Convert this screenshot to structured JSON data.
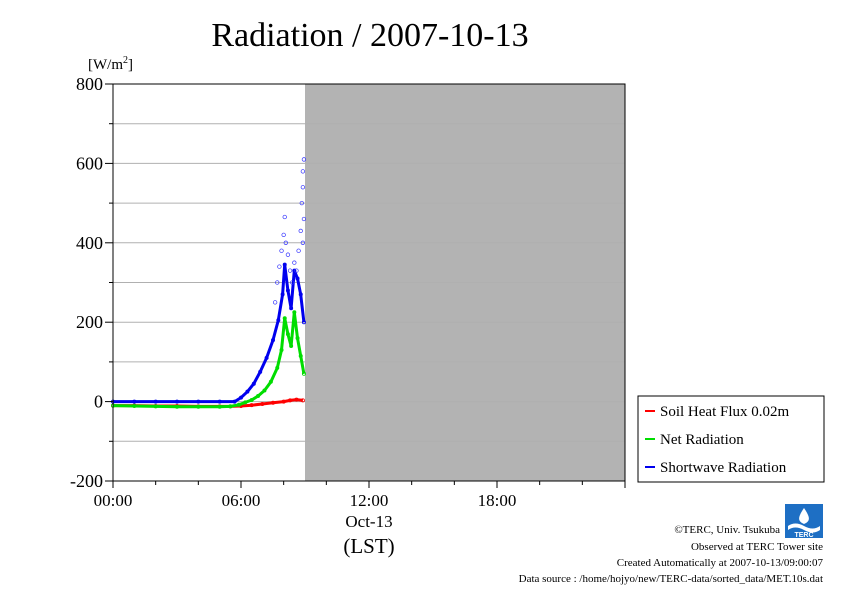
{
  "chart_data": {
    "type": "line",
    "title": "Radiation / 2007-10-13",
    "ylabel": "[W/m",
    "ylabel_sup": "2",
    "ylabel_close": "]",
    "ylim": [
      -200,
      800
    ],
    "yticks": [
      -200,
      0,
      200,
      400,
      600,
      800
    ],
    "y_tick_labels": [
      "-200",
      "0",
      "200",
      "400",
      "600",
      "800"
    ],
    "xlim": [
      0,
      24
    ],
    "xticks": [
      0,
      6,
      12,
      18
    ],
    "x_tick_labels": [
      "00:00",
      "06:00",
      "12:00",
      "18:00"
    ],
    "x_date_label": "Oct-13",
    "xlabel": "(LST)",
    "grid": true,
    "no_data_region": [
      9.0,
      24
    ],
    "legend_position": "lower-right outside",
    "series": [
      {
        "name": "Soil Heat Flux 0.02m",
        "color": "#ff0000",
        "x": [
          0,
          1,
          2,
          3,
          4,
          5,
          5.5,
          6,
          6.5,
          7,
          7.5,
          8,
          8.3,
          8.6,
          8.9
        ],
        "values": [
          -10,
          -10,
          -11,
          -11,
          -12,
          -12,
          -12,
          -11,
          -9,
          -6,
          -3,
          0,
          3,
          5,
          3
        ]
      },
      {
        "name": "Net Radiation",
        "color": "#00dd00",
        "x": [
          0,
          1,
          2,
          3,
          4,
          5,
          5.5,
          5.9,
          6.2,
          6.5,
          6.8,
          7.1,
          7.4,
          7.7,
          7.9,
          8.05,
          8.2,
          8.35,
          8.5,
          8.65,
          8.8,
          8.95
        ],
        "values": [
          -10,
          -11,
          -12,
          -13,
          -13,
          -13,
          -12,
          -8,
          -2,
          4,
          14,
          28,
          50,
          85,
          130,
          210,
          170,
          140,
          225,
          160,
          115,
          70
        ]
      },
      {
        "name": "Shortwave Radiation",
        "color": "#0000ee",
        "x": [
          0,
          1,
          2,
          3,
          4,
          5,
          5.7,
          6.0,
          6.3,
          6.6,
          6.9,
          7.2,
          7.5,
          7.75,
          7.95,
          8.05,
          8.2,
          8.35,
          8.5,
          8.65,
          8.8,
          8.95
        ],
        "values": [
          0,
          0,
          0,
          0,
          0,
          0,
          0,
          10,
          25,
          45,
          75,
          110,
          155,
          205,
          270,
          345,
          280,
          235,
          330,
          310,
          270,
          200
        ]
      }
    ],
    "scatter_points": {
      "name": "Shortwave Radiation",
      "x": [
        7.6,
        7.7,
        7.8,
        7.9,
        8.0,
        8.05,
        8.1,
        8.2,
        8.3,
        8.4,
        8.5,
        8.6,
        8.7,
        8.8,
        8.85,
        8.9,
        8.9,
        8.95,
        8.95,
        8.9
      ],
      "values": [
        250,
        300,
        340,
        380,
        420,
        465,
        400,
        370,
        330,
        300,
        350,
        330,
        380,
        430,
        500,
        540,
        580,
        610,
        460,
        400
      ]
    }
  },
  "footer": {
    "copyright": "©TERC, Univ. Tsukuba",
    "site": "Observed at TERC Tower site",
    "created": "Created Automatically at 2007-10-13/09:00:07",
    "source": "Data source : /home/hojyo/new/TERC-data/sorted_data/MET.10s.dat"
  },
  "logo": {
    "text": "TERC"
  },
  "colors": {
    "no_data_fill": "#b3b3b3",
    "grid": "#b0b0b0"
  }
}
